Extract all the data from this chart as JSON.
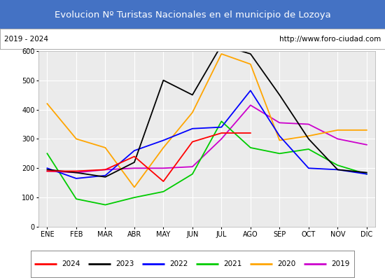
{
  "title": "Evolucion Nº Turistas Nacionales en el municipio de Lozoya",
  "subtitle_left": "2019 - 2024",
  "subtitle_right": "http://www.foro-ciudad.com",
  "months": [
    "ENE",
    "FEB",
    "MAR",
    "ABR",
    "MAY",
    "JUN",
    "JUL",
    "AGO",
    "SEP",
    "OCT",
    "NOV",
    "DIC"
  ],
  "ylim": [
    0,
    600
  ],
  "yticks": [
    0,
    100,
    200,
    300,
    400,
    500,
    600
  ],
  "series": {
    "2024": {
      "color": "#ff0000",
      "values": [
        190,
        190,
        195,
        240,
        155,
        290,
        320,
        320,
        null,
        null,
        null,
        null
      ]
    },
    "2023": {
      "color": "#000000",
      "values": [
        195,
        185,
        170,
        220,
        500,
        450,
        620,
        590,
        450,
        300,
        195,
        185
      ]
    },
    "2022": {
      "color": "#0000ff",
      "values": [
        200,
        165,
        175,
        260,
        295,
        335,
        340,
        465,
        310,
        200,
        195,
        180
      ]
    },
    "2021": {
      "color": "#00cc00",
      "values": [
        250,
        95,
        75,
        100,
        120,
        180,
        360,
        270,
        250,
        265,
        210,
        180
      ]
    },
    "2020": {
      "color": "#ffa500",
      "values": [
        420,
        300,
        270,
        135,
        270,
        390,
        590,
        555,
        295,
        310,
        330,
        330
      ]
    },
    "2019": {
      "color": "#cc00cc",
      "values": [
        190,
        185,
        195,
        200,
        200,
        205,
        300,
        415,
        355,
        350,
        300,
        280
      ]
    }
  },
  "title_bg_color": "#4472c4",
  "title_text_color": "#ffffff",
  "plot_bg_color": "#ebebeb",
  "grid_color": "#ffffff",
  "legend_order": [
    "2024",
    "2023",
    "2022",
    "2021",
    "2020",
    "2019"
  ]
}
